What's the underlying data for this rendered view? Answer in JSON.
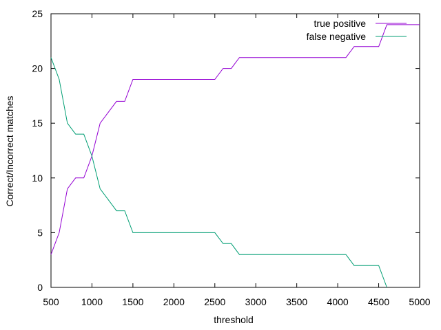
{
  "chart_data": {
    "type": "line",
    "xlabel": "threshold",
    "ylabel": "Correct/Incorrect matches",
    "xlim": [
      500,
      5000
    ],
    "ylim": [
      0,
      25
    ],
    "xticks": [
      500,
      1000,
      1500,
      2000,
      2500,
      3000,
      3500,
      4000,
      4500,
      5000
    ],
    "yticks": [
      0,
      5,
      10,
      15,
      20,
      25
    ],
    "grid": false,
    "legend_position": "top-right",
    "series": [
      {
        "name": "true positive",
        "color": "#9400d3",
        "x": [
          500,
          600,
          700,
          800,
          900,
          1000,
          1100,
          1200,
          1300,
          1400,
          1500,
          1600,
          1700,
          1800,
          1900,
          2000,
          2100,
          2200,
          2300,
          2400,
          2500,
          2600,
          2700,
          2800,
          2900,
          3000,
          3100,
          3200,
          3300,
          3400,
          3500,
          3600,
          3700,
          3800,
          3900,
          4000,
          4100,
          4200,
          4300,
          4400,
          4500,
          4600,
          4700,
          4800,
          4900,
          5000
        ],
        "y": [
          3,
          5,
          9,
          10,
          10,
          12,
          15,
          16,
          17,
          17,
          19,
          19,
          19,
          19,
          19,
          19,
          19,
          19,
          19,
          19,
          19,
          20,
          20,
          21,
          21,
          21,
          21,
          21,
          21,
          21,
          21,
          21,
          21,
          21,
          21,
          21,
          21,
          22,
          22,
          22,
          22,
          24,
          24,
          24,
          24,
          24
        ]
      },
      {
        "name": "false negative",
        "color": "#009e73",
        "x": [
          500,
          600,
          700,
          800,
          900,
          1000,
          1100,
          1200,
          1300,
          1400,
          1500,
          1600,
          1700,
          1800,
          1900,
          2000,
          2100,
          2200,
          2300,
          2400,
          2500,
          2600,
          2700,
          2800,
          2900,
          3000,
          3100,
          3200,
          3300,
          3400,
          3500,
          3600,
          3700,
          3800,
          3900,
          4000,
          4100,
          4200,
          4300,
          4400,
          4500,
          4600
        ],
        "y": [
          21,
          19,
          15,
          14,
          14,
          12,
          9,
          8,
          7,
          7,
          5,
          5,
          5,
          5,
          5,
          5,
          5,
          5,
          5,
          5,
          5,
          4,
          4,
          3,
          3,
          3,
          3,
          3,
          3,
          3,
          3,
          3,
          3,
          3,
          3,
          3,
          3,
          2,
          2,
          2,
          2,
          0
        ]
      }
    ]
  }
}
